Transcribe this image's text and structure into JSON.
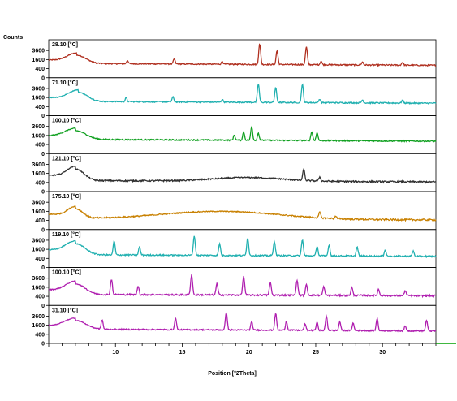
{
  "chart_data": {
    "type": "line",
    "title": "",
    "ylabel": "Counts",
    "xlabel": "Position [°2Theta]",
    "xlim": [
      5,
      34
    ],
    "x_ticks": [
      "10",
      "15",
      "20",
      "25",
      "30"
    ],
    "y_ticks": [
      "3600",
      "1600",
      "400",
      "0"
    ],
    "ylim": [
      0,
      6400
    ],
    "grid": false,
    "legend": "none",
    "series": [
      {
        "name": "28.10 [°C]",
        "color": "#b03020",
        "baseline": 1000,
        "hump": {
          "center": 7.1,
          "height": 1500,
          "width": 0.9
        },
        "peaks": [
          [
            10.9,
            500
          ],
          [
            14.4,
            800
          ],
          [
            18.0,
            400
          ],
          [
            20.8,
            4600
          ],
          [
            22.1,
            2700
          ],
          [
            24.3,
            3800
          ],
          [
            25.4,
            500
          ],
          [
            28.5,
            400
          ],
          [
            31.5,
            400
          ]
        ]
      },
      {
        "name": "71.10 [°C]",
        "color": "#20b0b0",
        "baseline": 1000,
        "hump": {
          "center": 7.2,
          "height": 1700,
          "width": 0.9
        },
        "peaks": [
          [
            10.8,
            600
          ],
          [
            14.3,
            800
          ],
          [
            18.0,
            400
          ],
          [
            20.7,
            4100
          ],
          [
            22.0,
            3000
          ],
          [
            24.0,
            3900
          ],
          [
            25.3,
            500
          ],
          [
            28.5,
            400
          ],
          [
            31.5,
            400
          ]
        ]
      },
      {
        "name": "100.10 [°C]",
        "color": "#10a020",
        "baseline": 1000,
        "hump": {
          "center": 7.0,
          "height": 1600,
          "width": 1.0
        },
        "peaks": [
          [
            18.9,
            800
          ],
          [
            19.6,
            1400
          ],
          [
            20.2,
            2600
          ],
          [
            20.7,
            1200
          ],
          [
            24.7,
            1500
          ],
          [
            25.1,
            1300
          ]
        ]
      },
      {
        "name": "121.10 [°C]",
        "color": "#303030",
        "baseline": 600,
        "hump": {
          "center": 7.0,
          "height": 1900,
          "width": 0.8
        },
        "broad": {
          "center": 20.0,
          "height": 500,
          "width": 3.5
        },
        "peaks": [
          [
            24.1,
            1900
          ],
          [
            25.3,
            500
          ]
        ]
      },
      {
        "name": "175.10 [°C]",
        "color": "#c88000",
        "baseline": 600,
        "hump": {
          "center": 7.0,
          "height": 1500,
          "width": 0.7
        },
        "broad": {
          "center": 18.0,
          "height": 1200,
          "width": 5.5
        },
        "peaks": [
          [
            25.3,
            800
          ],
          [
            26.5,
            300
          ]
        ]
      },
      {
        "name": "119.10 [°C]",
        "color": "#20b0b0",
        "baseline": 800,
        "hump": {
          "center": 7.0,
          "height": 2000,
          "width": 0.9
        },
        "peaks": [
          [
            9.9,
            2600
          ],
          [
            11.8,
            1300
          ],
          [
            15.9,
            4000
          ],
          [
            17.8,
            2000
          ],
          [
            19.9,
            3500
          ],
          [
            21.9,
            2600
          ],
          [
            24.0,
            3000
          ],
          [
            25.1,
            1500
          ],
          [
            26.0,
            1800
          ],
          [
            28.1,
            1400
          ],
          [
            30.2,
            900
          ],
          [
            32.3,
            700
          ]
        ]
      },
      {
        "name": "100.10 [°C]",
        "color": "#b020b0",
        "baseline": 600,
        "hump": {
          "center": 7.0,
          "height": 1700,
          "width": 0.9
        },
        "peaks": [
          [
            9.7,
            2700
          ],
          [
            11.7,
            1200
          ],
          [
            15.7,
            3800
          ],
          [
            17.6,
            1800
          ],
          [
            19.6,
            3500
          ],
          [
            21.6,
            2000
          ],
          [
            23.6,
            2500
          ],
          [
            24.3,
            1600
          ],
          [
            25.6,
            1200
          ],
          [
            27.7,
            1100
          ],
          [
            29.7,
            800
          ],
          [
            31.7,
            600
          ]
        ]
      },
      {
        "name": "31.10 [°C]",
        "color": "#b020b0",
        "baseline": 1000,
        "hump": {
          "center": 7.0,
          "height": 1600,
          "width": 1.0
        },
        "peaks": [
          [
            9.0,
            1700
          ],
          [
            14.5,
            2200
          ],
          [
            18.3,
            3800
          ],
          [
            20.2,
            1400
          ],
          [
            22.0,
            3500
          ],
          [
            22.8,
            1500
          ],
          [
            24.2,
            1000
          ],
          [
            25.1,
            1300
          ],
          [
            25.8,
            2700
          ],
          [
            26.8,
            1500
          ],
          [
            27.8,
            1200
          ],
          [
            29.6,
            2200
          ],
          [
            31.7,
            700
          ],
          [
            33.3,
            1800
          ]
        ]
      }
    ]
  }
}
